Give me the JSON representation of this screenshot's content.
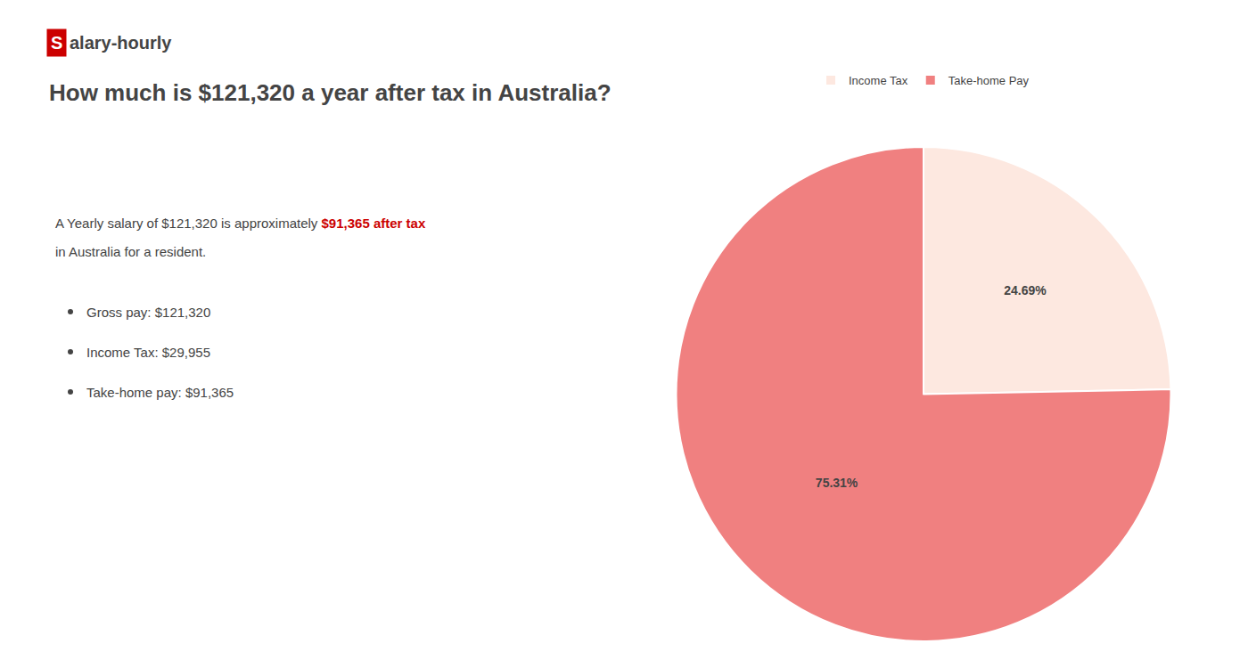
{
  "chart_data": {
    "type": "pie",
    "title": "How much is $121,320 a year after tax in Australia?",
    "categories": [
      "Income Tax",
      "Take-home Pay"
    ],
    "values": [
      24.69,
      75.31
    ],
    "value_labels": [
      "24.69%",
      "75.31%"
    ],
    "colors": [
      "#fde8e0",
      "#f08080"
    ],
    "data_labels": true,
    "legend": "top",
    "annotations": [
      {
        "text": "S",
        "color": "#ffffff",
        "bgcolor": "#cc0000"
      },
      {
        "text": "alary-hourly"
      },
      {
        "text": "A Yearly salary of $121,320 is approximately "
      },
      {
        "text": "$91,365 after tax",
        "color": "#cc0000"
      },
      {
        "text": "in Australia for a resident."
      },
      {
        "text": "Gross pay: $121,320"
      },
      {
        "text": "Income Tax: $29,955"
      },
      {
        "text": "Take-home pay: $91,365"
      }
    ]
  }
}
